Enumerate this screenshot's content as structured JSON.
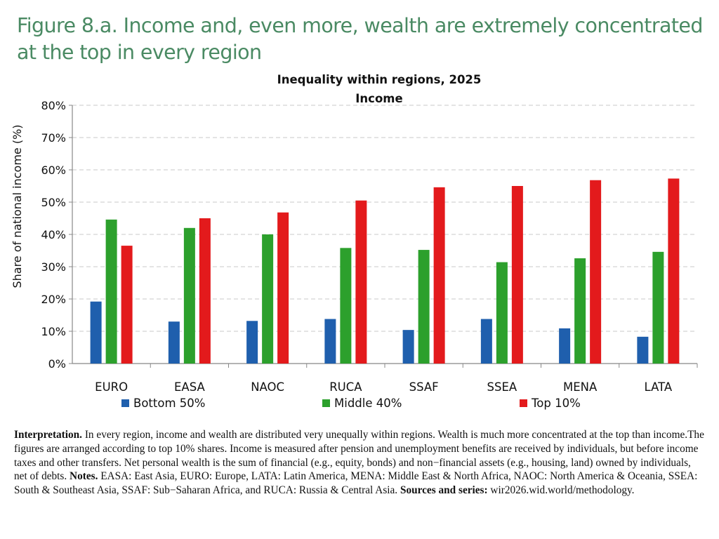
{
  "figure_title": "Figure 8.a. Income and, even more, wealth are extremely concentrated at the top in every region",
  "chart_data": {
    "type": "bar",
    "title": "Inequality within regions, 2025",
    "subtitle": "Income",
    "ylabel": "Share of national income (%)",
    "xlabel": "",
    "ylim": [
      0,
      80
    ],
    "yticks": [
      "0%",
      "10%",
      "20%",
      "30%",
      "40%",
      "50%",
      "60%",
      "70%",
      "80%"
    ],
    "grid": true,
    "legend_position": "bottom",
    "categories": [
      "EURO",
      "EASA",
      "NAOC",
      "RUCA",
      "SSAF",
      "SSEA",
      "MENA",
      "LATA"
    ],
    "series": [
      {
        "name": "Bottom 50%",
        "color": "#1f5fad",
        "values": [
          19.2,
          13.0,
          13.2,
          13.8,
          10.4,
          13.8,
          10.9,
          8.3
        ]
      },
      {
        "name": "Middle 40%",
        "color": "#2ca02c",
        "values": [
          44.6,
          42.0,
          40.0,
          35.8,
          35.2,
          31.4,
          32.6,
          34.6
        ]
      },
      {
        "name": "Top 10%",
        "color": "#e31a1c",
        "values": [
          36.5,
          45.0,
          46.8,
          50.5,
          54.6,
          55.0,
          56.8,
          57.3
        ]
      }
    ]
  },
  "notes": {
    "interpretation_label": "Interpretation.",
    "interpretation_text": " In every region, income and wealth are distributed very unequally within regions. Wealth is much more concentrated at the top than income.The figures are arranged according to top 10% shares. Income is measured after pension and unemployment benefits are received by individuals, but before income taxes and other transfers. Net personal wealth is the sum of financial (e.g., equity, bonds) and non−financial assets (e.g., housing, land) owned by individuals, net of debts. ",
    "notes_label": "Notes.",
    "notes_text": " EASA: East Asia, EURO: Europe, LATA: Latin America, MENA: Middle East & North Africa, NAOC: North America & Oceania, SSEA: South & Southeast Asia, SSAF: Sub−Saharan Africa, and RUCA: Russia & Central Asia. ",
    "sources_label": "Sources and series:",
    "sources_text": " wir2026.wid.world/methodology."
  }
}
